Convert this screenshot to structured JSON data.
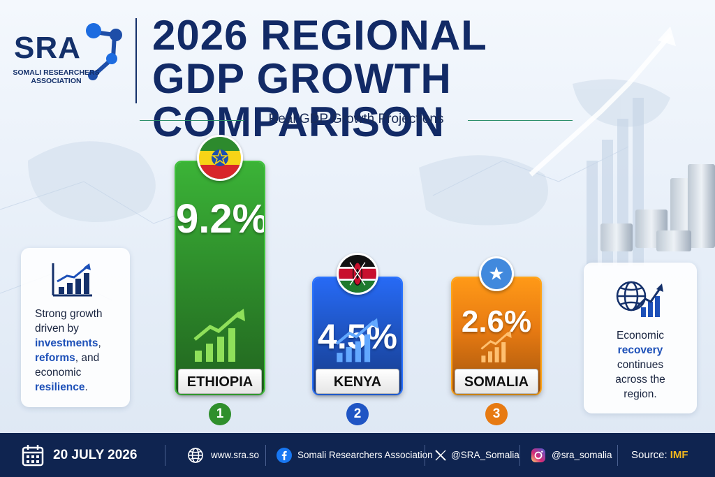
{
  "logo": {
    "name": "SRA",
    "sub_line1": "SOMALI RESEARCHERS",
    "sub_line2": "ASSOCIATION"
  },
  "header": {
    "title_line1": "2026 REGIONAL",
    "title_line2": "GDP GROWTH COMPARISON",
    "subtitle": "Real GDP Growth Projections"
  },
  "chart_data": {
    "type": "bar",
    "title": "2026 REGIONAL GDP GROWTH COMPARISON",
    "subtitle": "Real GDP Growth Projections",
    "categories": [
      "ETHIOPIA",
      "KENYA",
      "SOMALIA"
    ],
    "values": [
      9.2,
      4.5,
      2.6
    ],
    "value_labels": [
      "9.2%",
      "4.5%",
      "2.6%"
    ],
    "ranks": [
      "1",
      "2",
      "3"
    ],
    "colors": [
      "#2f8f2c",
      "#1f55c4",
      "#e77a12"
    ],
    "grid": false,
    "legend": "none"
  },
  "left_card": {
    "icon": "bar-growth-icon",
    "line1": "Strong growth",
    "line2": "driven by",
    "hl1": "investments",
    "after_hl1": ",",
    "hl2": "reforms",
    "after_hl2": ", and",
    "line5": "economic",
    "hl3": "resilience",
    "after_hl3": "."
  },
  "right_card": {
    "icon": "globe-growth-icon",
    "line1": "Economic",
    "hl1": "recovery",
    "line3": "continues",
    "line4": "across the",
    "line5": "region."
  },
  "footer": {
    "date": "20 JULY 2026",
    "website": "www.sra.so",
    "facebook": "Somali Researchers Association",
    "x_handle": "@SRA_Somalia",
    "instagram": "@sra_somalia",
    "source_label": "Source:",
    "source_value": "IMF"
  }
}
